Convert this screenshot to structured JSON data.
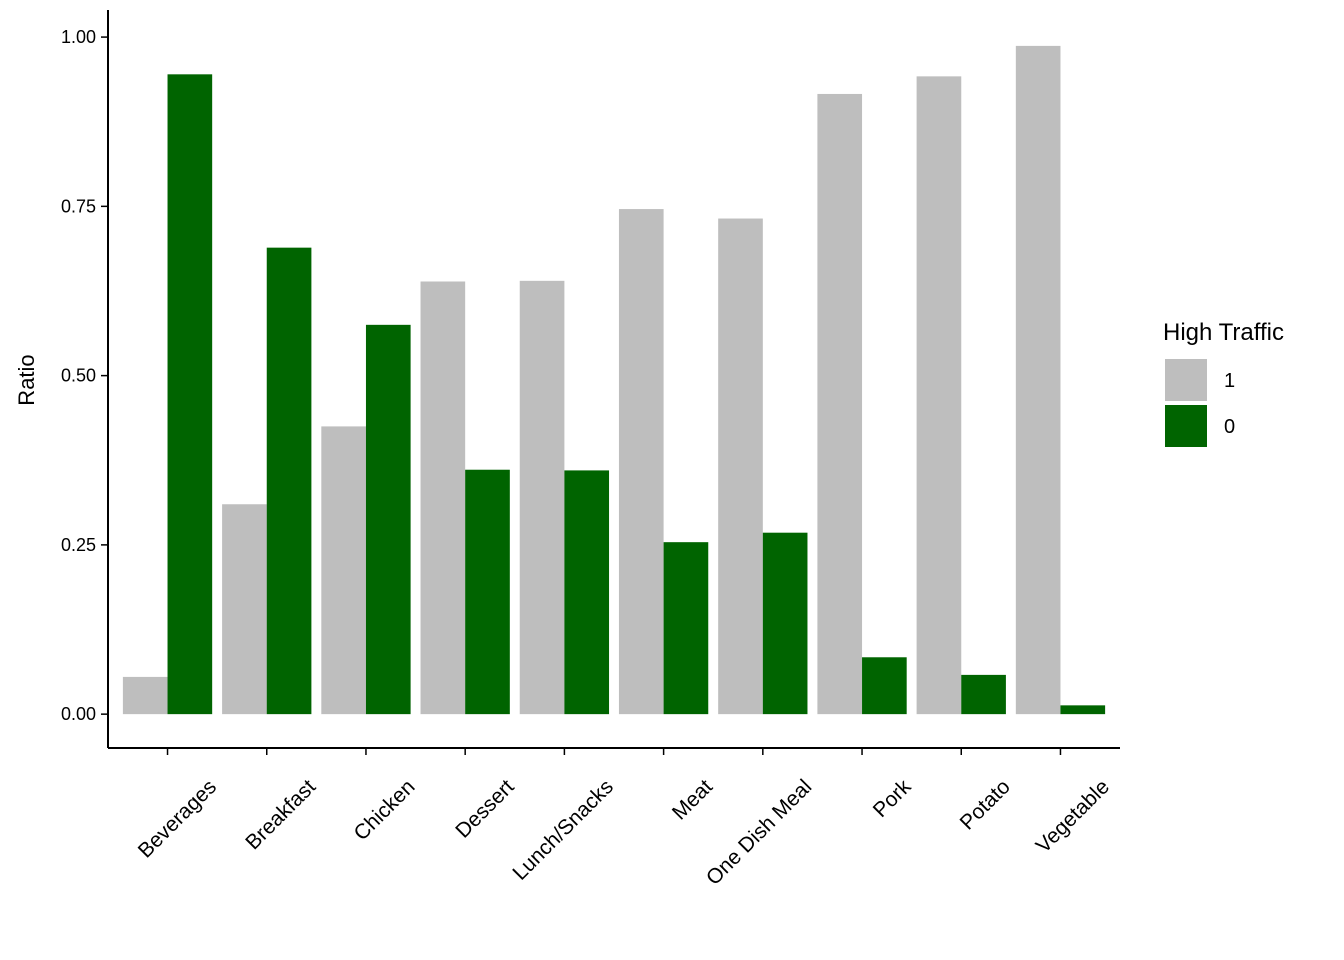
{
  "chart_data": {
    "type": "grouped_bar",
    "y_label": "Ratio",
    "legend_title": "High Traffic",
    "legend_position": "right",
    "categories": [
      "Beverages",
      "Breakfast",
      "Chicken",
      "Dessert",
      "Lunch/Snacks",
      "Meat",
      "One Dish Meal",
      "Pork",
      "Potato",
      "Vegetable"
    ],
    "series": [
      {
        "name": "1",
        "color": "#bebebe",
        "values": [
          0.055,
          0.31,
          0.425,
          0.639,
          0.64,
          0.746,
          0.732,
          0.916,
          0.942,
          0.987
        ]
      },
      {
        "name": "0",
        "color": "#006400",
        "values": [
          0.945,
          0.689,
          0.575,
          0.361,
          0.36,
          0.254,
          0.268,
          0.084,
          0.058,
          0.013
        ]
      }
    ],
    "ylim": [
      -0.05,
      1.04
    ],
    "yticks": [
      {
        "value": 0,
        "label": "0.00"
      },
      {
        "value": 0.25,
        "label": "0.25"
      },
      {
        "value": 0.5,
        "label": "0.50"
      },
      {
        "value": 0.75,
        "label": "0.75"
      },
      {
        "value": 1,
        "label": "1.00"
      }
    ]
  }
}
